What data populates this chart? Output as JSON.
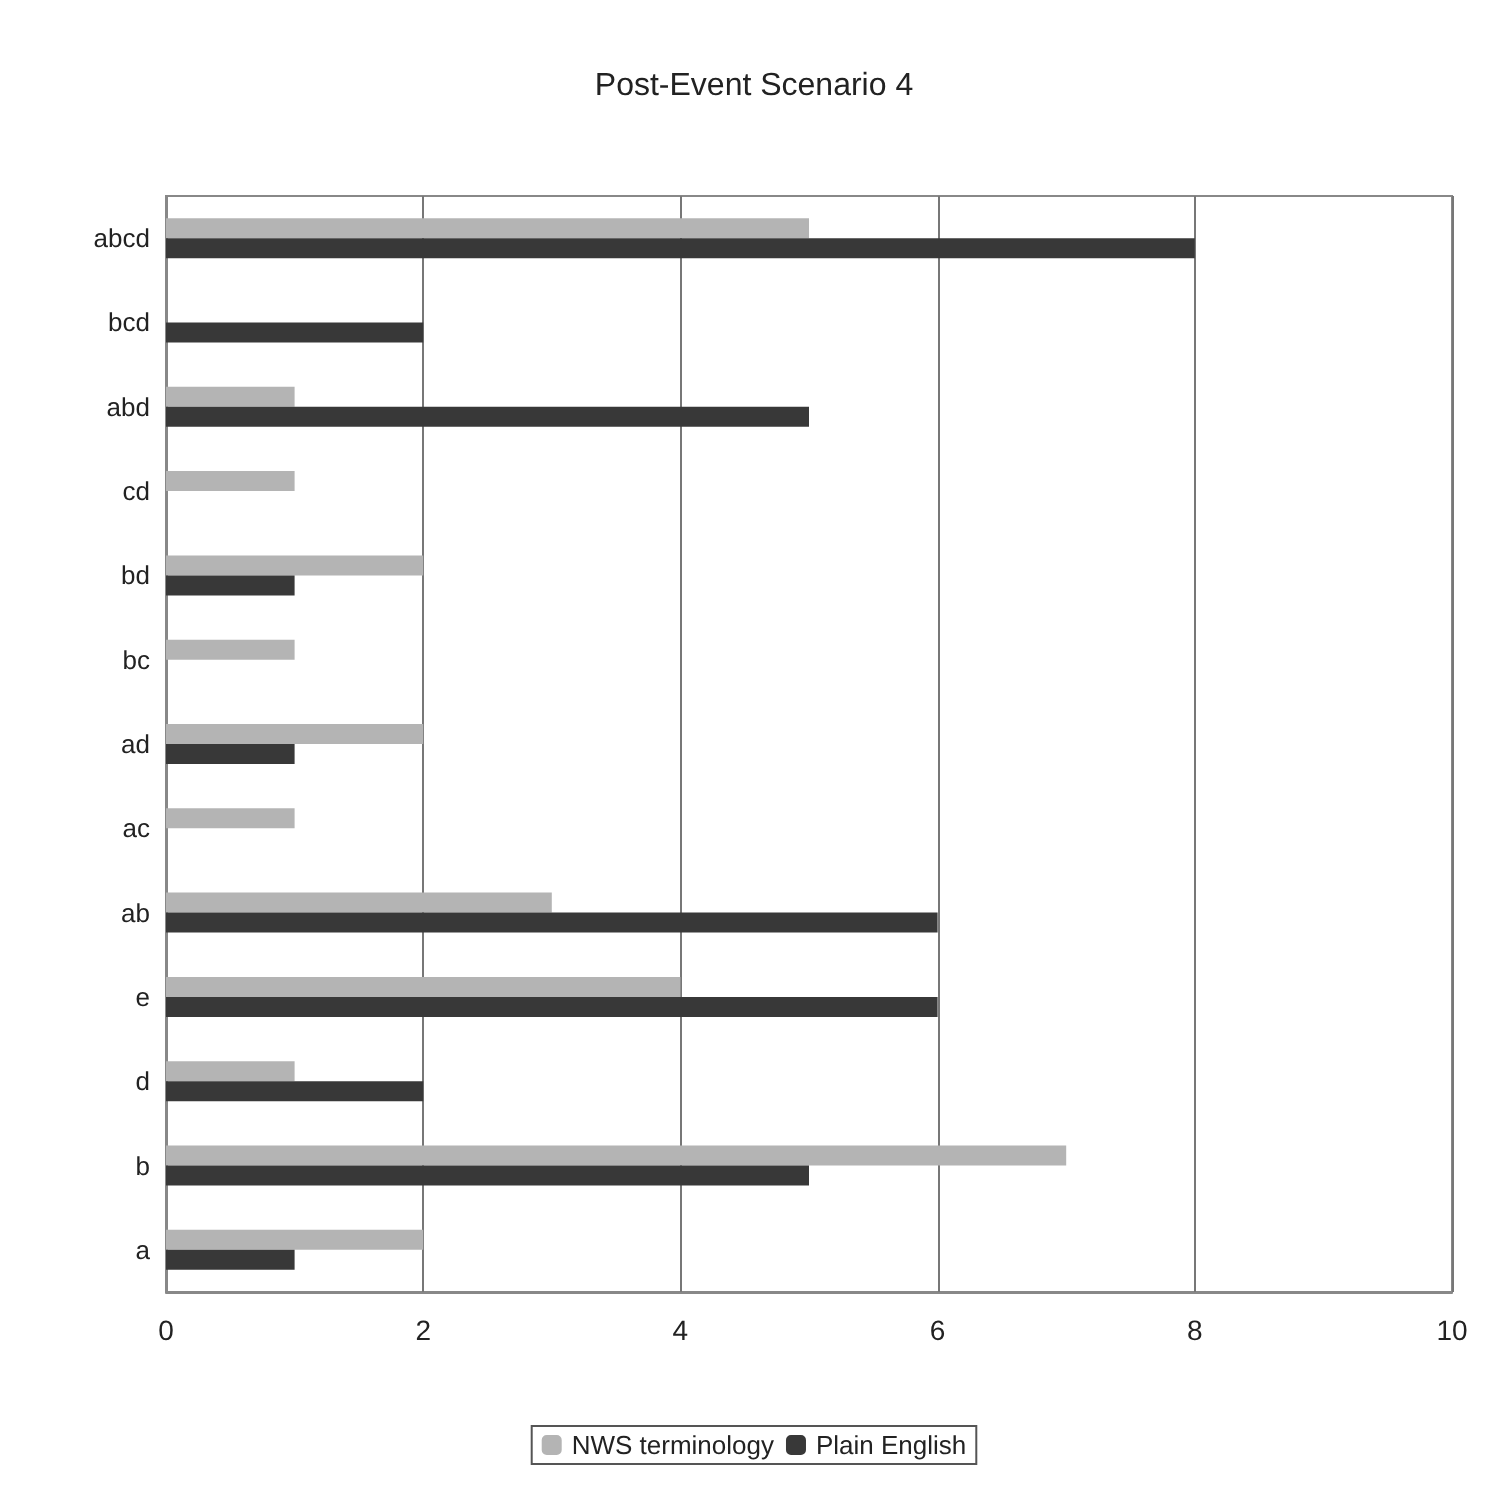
{
  "chart_data": {
    "type": "bar",
    "orientation": "horizontal",
    "title": "Post-Event Scenario 4",
    "categories": [
      "abcd",
      "bcd",
      "abd",
      "cd",
      "bd",
      "bc",
      "ad",
      "ac",
      "ab",
      "e",
      "d",
      "b",
      "a"
    ],
    "series": [
      {
        "name": "NWS terminology",
        "color": "#b4b4b4",
        "values": [
          5,
          0,
          1,
          1,
          2,
          1,
          2,
          1,
          3,
          4,
          1,
          7,
          2
        ]
      },
      {
        "name": "Plain English",
        "color": "#383838",
        "values": [
          8,
          2,
          5,
          0,
          1,
          0,
          1,
          0,
          6,
          6,
          2,
          5,
          1
        ]
      }
    ],
    "xlim": [
      0,
      10
    ],
    "xticks": [
      0,
      2,
      4,
      6,
      8,
      10
    ],
    "grid": "x",
    "legend": "bottom"
  }
}
